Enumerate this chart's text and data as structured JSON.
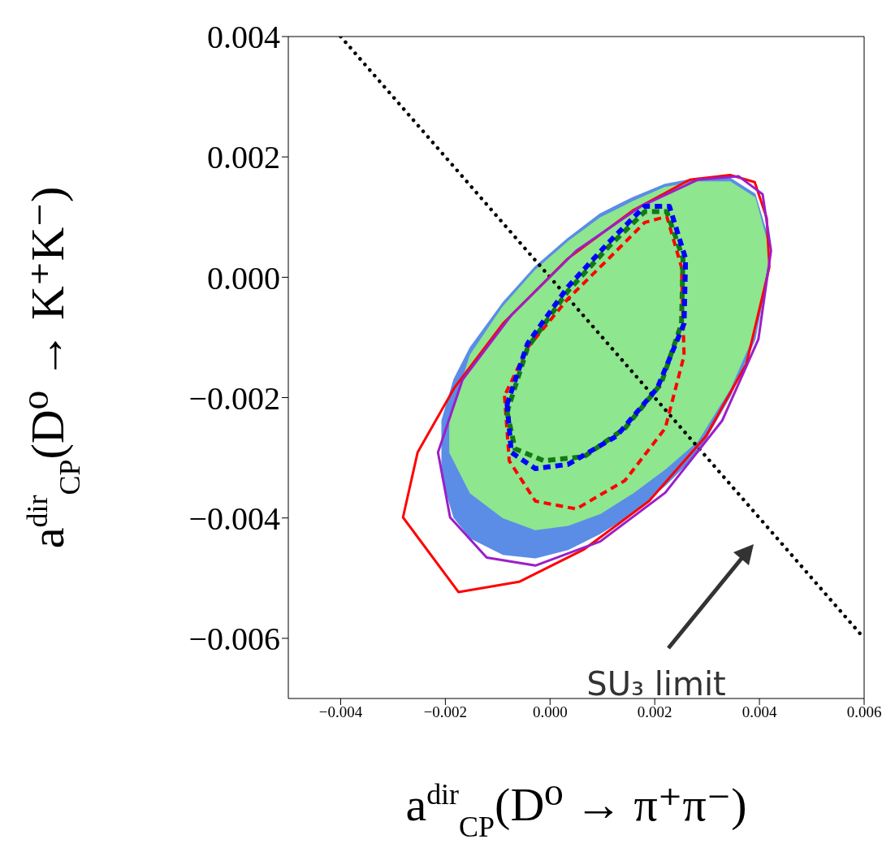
{
  "chart_data": {
    "type": "line",
    "xlabel": "a$^{dir}$$_{CP}$(D⁰ → π⁺π⁻)",
    "ylabel": "a$^{dir}$$_{CP}$(D⁰ → K⁺K⁻)",
    "xlim": [
      -0.005,
      0.006
    ],
    "xticks": [
      -0.004,
      -0.002,
      {
        "value": 0,
        "label": "0.000"
      },
      0.002,
      0.004,
      0.006
    ],
    "ylim": [
      -0.007,
      0.004
    ],
    "yticks": [
      -0.006,
      -0.004,
      -0.002,
      {
        "value": 0,
        "label": "0.000"
      },
      0.002,
      0.004
    ],
    "grid": false,
    "legend": false,
    "annotations": [
      "SU₃ limit"
    ],
    "series": [
      {
        "type": "area",
        "color": "#5b8de6",
        "x": [
          -0.00206,
          -0.00183,
          -0.00152,
          -0.0009,
          -0.00028,
          0.00034,
          0.00096,
          0.00158,
          0.0022,
          0.00282,
          0.00344,
          0.00391,
          0.00414,
          0.00414,
          0.00391,
          0.00344,
          0.00282,
          0.0022,
          0.00158,
          0.00096,
          0.00034,
          -0.00028,
          -0.0009,
          -0.00152,
          -0.00183,
          -0.00206,
          -0.00206
        ],
        "values": [
          -0.00238,
          -0.0017,
          -0.00117,
          -0.00043,
          0.00017,
          0.00064,
          0.00105,
          0.00132,
          0.00154,
          0.00164,
          0.00164,
          0.00138,
          0.00071,
          0,
          -0.00103,
          -0.00197,
          -0.00291,
          -0.00345,
          -0.00392,
          -0.00425,
          -0.00452,
          -0.00466,
          -0.0046,
          -0.00433,
          -0.00399,
          -0.00332,
          -0.00238
        ]
      },
      {
        "type": "area",
        "color": "#8ee68e",
        "x": [
          -0.00191,
          -0.00152,
          -0.0009,
          -0.00028,
          0.00034,
          0.00096,
          0.00158,
          0.0022,
          0.00282,
          0.00344,
          0.00391,
          0.00414,
          0.00414,
          0.00391,
          0.00344,
          0.00282,
          0.0022,
          0.00158,
          0.00096,
          0.00034,
          -0.00028,
          -0.0009,
          -0.00152,
          -0.00191,
          -0.00191
        ],
        "values": [
          -0.00238,
          -0.0013,
          -0.0005,
          0.00011,
          0.00058,
          0.00098,
          0.00125,
          0.00149,
          0.00158,
          0.00158,
          0.00132,
          0.00058,
          0.00017,
          -0.0009,
          -0.00184,
          -0.00271,
          -0.00318,
          -0.00358,
          -0.00392,
          -0.00412,
          -0.00419,
          -0.00399,
          -0.00358,
          -0.00291,
          -0.00238
        ]
      },
      {
        "color": "#000000",
        "line_style": "dotted",
        "x": [
          -0.004,
          0.006
        ],
        "values": [
          0.004,
          -0.006
        ]
      }
    ]
  }
}
